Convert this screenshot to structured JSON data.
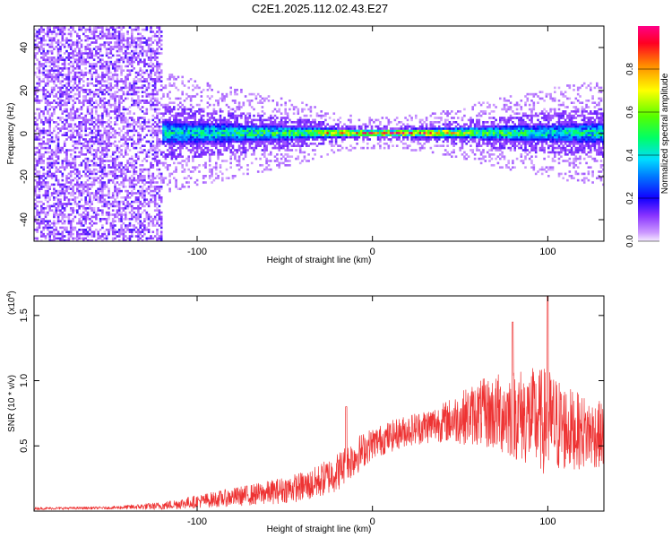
{
  "chart_data": [
    {
      "type": "heatmap",
      "title": "C2E1.2025.112.02.43.E27",
      "xlabel": "Height of straight line (km)",
      "ylabel": "Frequency (Hz)",
      "xlim": [
        -193,
        132
      ],
      "ylim": [
        -50,
        50
      ],
      "xticks": [
        -100,
        0,
        100
      ],
      "yticks": [
        -40,
        -20,
        0,
        20,
        40
      ],
      "grid": false,
      "description_of_data": "Spectral power vs height: diffuse noise below -120 km, a narrow band centered near 0 Hz from -120 km to 132 km, widening toward both ends, peak amplitude near 0 km",
      "band": {
        "x_start": -120,
        "center_hz": 0,
        "profile": [
          {
            "x": -120,
            "half_width_hz": 8,
            "peak_amp": 0.45
          },
          {
            "x": -80,
            "half_width_hz": 6,
            "peak_amp": 0.5
          },
          {
            "x": -40,
            "half_width_hz": 4,
            "peak_amp": 0.6
          },
          {
            "x": -20,
            "half_width_hz": 2.5,
            "peak_amp": 0.9
          },
          {
            "x": 0,
            "half_width_hz": 2,
            "peak_amp": 1.0
          },
          {
            "x": 30,
            "half_width_hz": 2.5,
            "peak_amp": 0.95
          },
          {
            "x": 60,
            "half_width_hz": 4,
            "peak_amp": 0.6
          },
          {
            "x": 100,
            "half_width_hz": 6,
            "peak_amp": 0.45
          },
          {
            "x": 132,
            "half_width_hz": 7,
            "peak_amp": 0.5
          }
        ]
      },
      "colorbar": {
        "label": "Normalized spectral amplitude",
        "range": [
          0,
          1
        ],
        "ticks": [
          0.0,
          0.2,
          0.4,
          0.6,
          0.8
        ]
      }
    },
    {
      "type": "line",
      "title": "",
      "xlabel": "Height of straight line (km)",
      "ylabel": "SNR (10 * v/v)",
      "scale_note": "(x10",
      "scale_exp": "4",
      "scale_close": ")",
      "xlim": [
        -193,
        132
      ],
      "ylim": [
        0,
        1.65
      ],
      "xticks": [
        -100,
        0,
        100
      ],
      "yticks": [
        0.5,
        1.0,
        1.5
      ],
      "ytick_labels": [
        "0.5",
        "1.0",
        "1.5"
      ],
      "grid": false,
      "series": [
        {
          "name": "SNR",
          "color": "#ee3333",
          "envelope": [
            {
              "x": -193,
              "mean": 0.02,
              "amp": 0.01
            },
            {
              "x": -150,
              "mean": 0.025,
              "amp": 0.01
            },
            {
              "x": -120,
              "mean": 0.04,
              "amp": 0.03
            },
            {
              "x": -90,
              "mean": 0.09,
              "amp": 0.06
            },
            {
              "x": -60,
              "mean": 0.14,
              "amp": 0.09
            },
            {
              "x": -35,
              "mean": 0.2,
              "amp": 0.12
            },
            {
              "x": -20,
              "mean": 0.3,
              "amp": 0.15
            },
            {
              "x": -10,
              "mean": 0.42,
              "amp": 0.15
            },
            {
              "x": 0,
              "mean": 0.52,
              "amp": 0.12
            },
            {
              "x": 20,
              "mean": 0.62,
              "amp": 0.12
            },
            {
              "x": 40,
              "mean": 0.68,
              "amp": 0.15
            },
            {
              "x": 60,
              "mean": 0.75,
              "amp": 0.25
            },
            {
              "x": 80,
              "mean": 0.75,
              "amp": 0.35
            },
            {
              "x": 100,
              "mean": 0.68,
              "amp": 0.42
            },
            {
              "x": 115,
              "mean": 0.62,
              "amp": 0.3
            },
            {
              "x": 132,
              "mean": 0.58,
              "amp": 0.25
            }
          ],
          "peaks": [
            {
              "x": -15,
              "value": 0.8
            },
            {
              "x": 80,
              "value": 1.45
            },
            {
              "x": 100,
              "value": 1.65
            }
          ]
        }
      ]
    }
  ],
  "colors": {
    "line": "#ee3333",
    "axis": "#000000",
    "background": "#ffffff"
  }
}
